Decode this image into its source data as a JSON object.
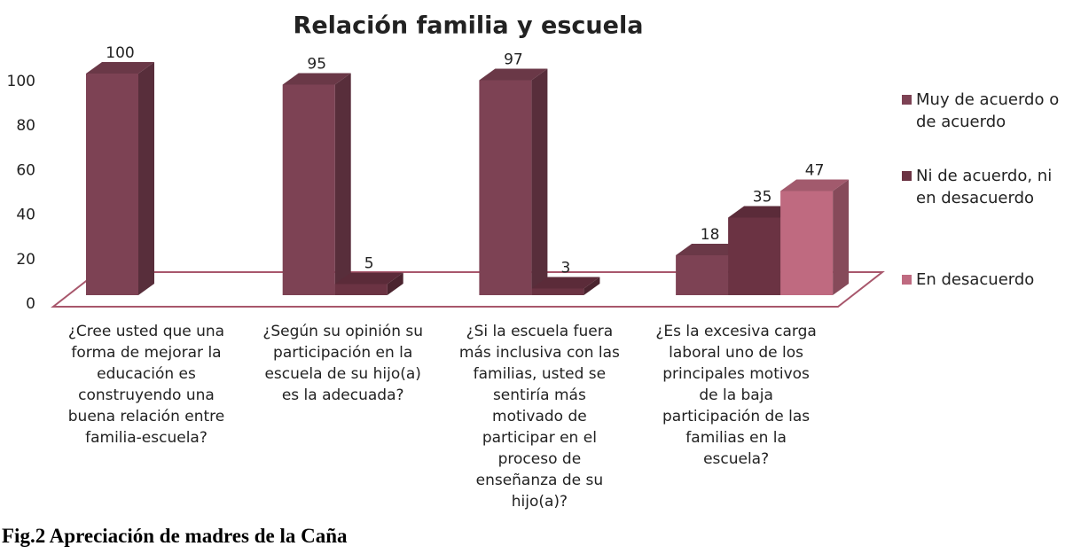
{
  "chart_data": {
    "type": "bar3d",
    "title": "Relación familia y escuela",
    "caption": "Fig.2 Apreciación de madres de la Caña",
    "categories": [
      "¿Cree usted que una forma de mejorar la educación es construyendo una buena relación entre familia-escuela?",
      "¿Según su opinión su participación en la escuela de su hijo(a) es la adecuada?",
      "¿Si la escuela fuera más inclusiva con las familias, usted se sentiría más motivado de participar en el proceso de enseñanza de su hijo(a)?",
      "¿Es la excesiva carga laboral uno de los principales motivos de la baja participación de las familias en la escuela?"
    ],
    "series": [
      {
        "name": "Muy de acuerdo o de acuerdo",
        "color": "#7d4254",
        "values": [
          100,
          95,
          97,
          18
        ]
      },
      {
        "name": "Ni de acuerdo, ni en desacuerdo",
        "color": "#6b3343",
        "values": [
          null,
          5,
          3,
          35
        ]
      },
      {
        "name": "En desacuerdo",
        "color": "#bf6a80",
        "values": [
          null,
          null,
          null,
          47
        ]
      }
    ],
    "ylim": [
      0,
      100
    ],
    "yticks": [
      0,
      20,
      40,
      60,
      80,
      100
    ],
    "grid": false,
    "legend": "right"
  }
}
